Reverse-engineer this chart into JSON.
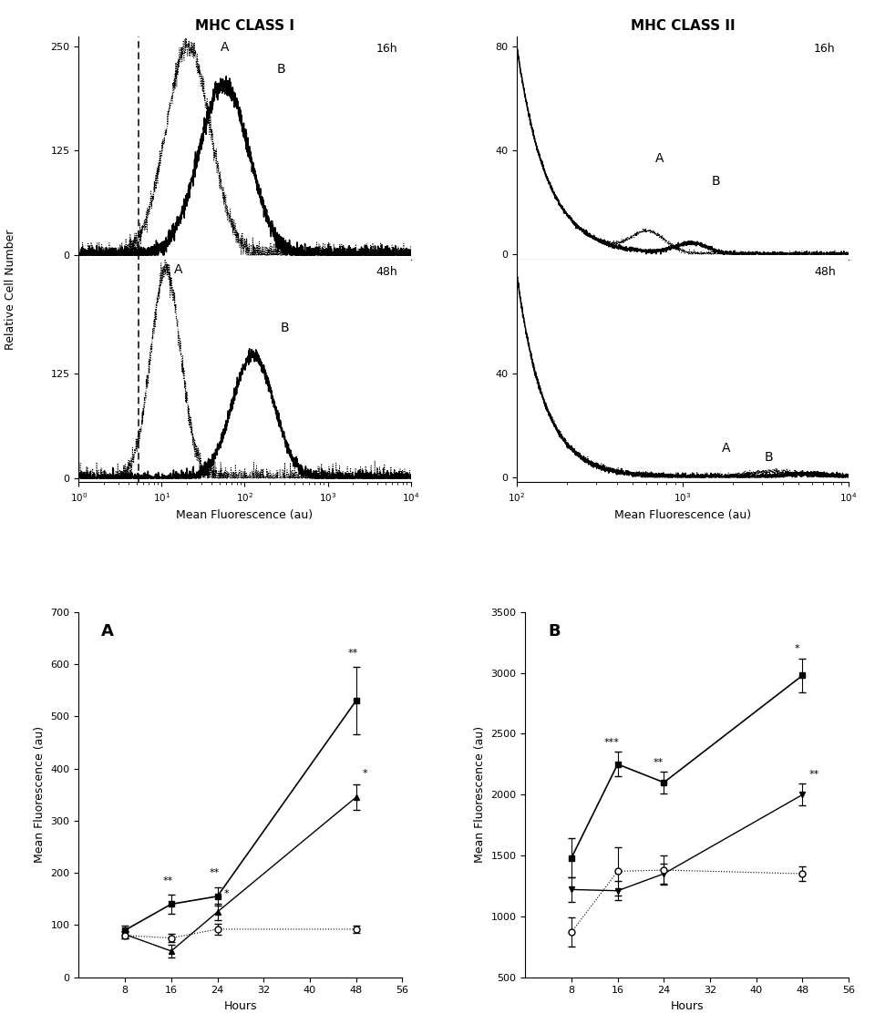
{
  "title_left": "MHC CLASS I",
  "title_right": "MHC CLASS II",
  "ylabel_top": "Relative Cell Number",
  "xlabel_bottom_left": "Mean Fluorescence (au)",
  "xlabel_bottom_right": "Mean Fluorescence (au)",
  "ylabel_bottom": "Mean Fluorescence (au)",
  "xlabel_line": "Hours",
  "line_chart_A_title": "A",
  "line_chart_B_title": "B",
  "hours": [
    8,
    16,
    24,
    48
  ],
  "lineA_solid1_values": [
    90,
    140,
    155,
    530
  ],
  "lineA_solid1_err": [
    8,
    18,
    18,
    65
  ],
  "lineA_solid2_values": [
    82,
    50,
    125,
    345
  ],
  "lineA_solid2_err": [
    7,
    12,
    15,
    25
  ],
  "lineA_dotted_values": [
    80,
    75,
    92,
    92
  ],
  "lineA_dotted_err": [
    6,
    8,
    10,
    7
  ],
  "lineA_solid1_annot": [
    "",
    "**",
    "**",
    "**"
  ],
  "lineA_solid2_annot": [
    "",
    "",
    "*",
    "*"
  ],
  "lineA_dotted_annot": [
    "",
    "",
    "",
    ""
  ],
  "lineB_solid1_values": [
    1480,
    2250,
    2100,
    2980
  ],
  "lineB_solid1_err": [
    160,
    100,
    90,
    140
  ],
  "lineB_solid2_values": [
    1220,
    1210,
    1350,
    2000
  ],
  "lineB_solid2_err": [
    100,
    80,
    80,
    90
  ],
  "lineB_dotted_values": [
    870,
    1370,
    1380,
    1350
  ],
  "lineB_dotted_err": [
    120,
    200,
    120,
    60
  ],
  "lineB_solid1_annot": [
    "",
    "***",
    "**",
    "*"
  ],
  "lineB_solid2_annot": [
    "",
    "",
    "",
    "**"
  ],
  "lineB_dotted_annot": [
    "",
    "",
    "",
    ""
  ],
  "background_color": "#ffffff"
}
